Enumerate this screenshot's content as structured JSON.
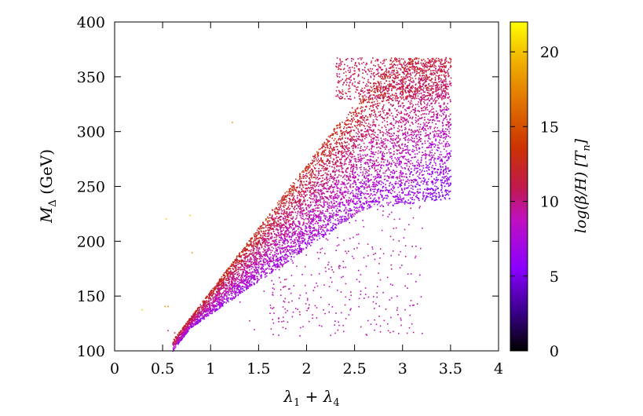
{
  "chart_data": {
    "type": "scatter",
    "title": "",
    "xlabel": "λ₁ + λ₄",
    "ylabel": "M_Δ (GeV)",
    "xlim": [
      0,
      4
    ],
    "ylim": [
      100,
      400
    ],
    "xticks": [
      0,
      0.5,
      1,
      1.5,
      2,
      2.5,
      3,
      3.5,
      4
    ],
    "xtick_labels": [
      "0",
      "0.5",
      "1",
      "1.5",
      "2",
      "2.5",
      "3",
      "3.5",
      "4"
    ],
    "yticks": [
      100,
      150,
      200,
      250,
      300,
      350,
      400
    ],
    "ytick_labels": [
      "100",
      "150",
      "200",
      "250",
      "300",
      "350",
      "400"
    ],
    "grid": false,
    "colorbar": {
      "label": "log(β/H) [T_n]",
      "range": [
        0,
        22
      ],
      "ticks": [
        0,
        5,
        10,
        15,
        20
      ],
      "tick_labels": [
        "0",
        "5",
        "10",
        "15",
        "20"
      ],
      "colormap": [
        "#000000",
        "#3a008c",
        "#8a00ff",
        "#c010c0",
        "#c01a4a",
        "#cc3300",
        "#e07000",
        "#f0b000",
        "#ffff00"
      ]
    },
    "series": [
      {
        "color_value": 10,
        "points": [
          [
            0.6,
            118
          ],
          [
            0.65,
            122
          ],
          [
            0.7,
            115
          ],
          [
            0.75,
            120
          ],
          [
            0.8,
            128
          ],
          [
            0.85,
            135
          ],
          [
            0.9,
            145
          ],
          [
            0.95,
            150
          ],
          [
            1.0,
            155
          ],
          [
            1.05,
            160
          ],
          [
            1.1,
            165
          ],
          [
            1.2,
            175
          ],
          [
            1.3,
            185
          ],
          [
            1.4,
            195
          ],
          [
            1.5,
            205
          ],
          [
            1.6,
            215
          ],
          [
            1.7,
            225
          ],
          [
            1.8,
            232
          ],
          [
            1.9,
            240
          ],
          [
            2.0,
            248
          ],
          [
            2.1,
            255
          ],
          [
            2.2,
            262
          ],
          [
            2.3,
            270
          ],
          [
            2.4,
            275
          ],
          [
            2.5,
            282
          ],
          [
            2.6,
            288
          ],
          [
            2.7,
            293
          ],
          [
            2.8,
            298
          ],
          [
            2.9,
            303
          ],
          [
            3.0,
            308
          ],
          [
            3.1,
            312
          ],
          [
            3.2,
            318
          ],
          [
            3.3,
            322
          ],
          [
            3.4,
            328
          ]
        ]
      }
    ],
    "point_count": 8000
  }
}
